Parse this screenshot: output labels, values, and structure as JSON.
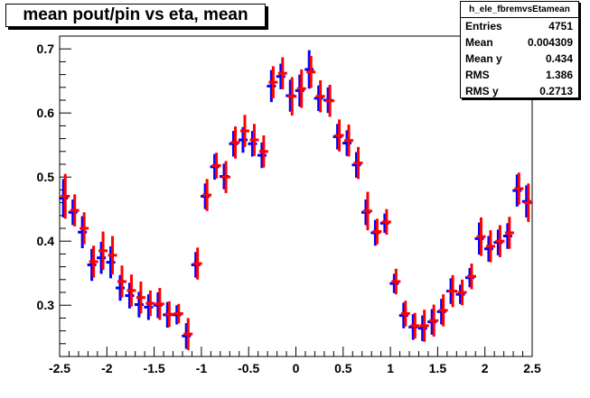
{
  "stats": {
    "name": "h_ele_fbremvsEtamean",
    "rows": [
      {
        "label": "Entries",
        "value": "4751"
      },
      {
        "label": "Mean",
        "value": "0.004309"
      },
      {
        "label": "Mean y",
        "value": "0.434"
      },
      {
        "label": "RMS",
        "value": "1.386"
      },
      {
        "label": "RMS y",
        "value": "0.2713"
      }
    ]
  },
  "chart_data": {
    "type": "scatter",
    "title": "mean pout/pin vs eta, mean",
    "xlabel": "",
    "ylabel": "",
    "xlim": [
      -2.5,
      2.5
    ],
    "ylim": [
      0.22,
      0.72
    ],
    "xticks": [
      "-2.5",
      "-2",
      "-1.5",
      "-1",
      "-0.5",
      "0",
      "0.5",
      "1",
      "1.5",
      "2",
      "2.5"
    ],
    "yticks": [
      "0.3",
      "0.4",
      "0.5",
      "0.6",
      "0.7"
    ],
    "grid": false,
    "colors": {
      "series_a": "#0000ff",
      "series_b": "#ff0000"
    },
    "series": [
      {
        "x": [
          -2.45,
          -2.35,
          -2.25,
          -2.15,
          -2.05,
          -1.95,
          -1.85,
          -1.75,
          -1.65,
          -1.55,
          -1.45,
          -1.35,
          -1.25,
          -1.15,
          -1.05,
          -0.95,
          -0.85,
          -0.75,
          -0.65,
          -0.55,
          -0.45,
          -0.35,
          -0.25,
          -0.15,
          -0.05,
          0.05,
          0.15,
          0.25,
          0.35,
          0.45,
          0.55,
          0.65,
          0.75,
          0.85,
          0.95,
          1.05,
          1.15,
          1.25,
          1.35,
          1.45,
          1.55,
          1.65,
          1.75,
          1.85,
          1.95,
          2.05,
          2.15,
          2.25,
          2.35,
          2.45
        ],
        "y": [
          0.467,
          0.445,
          0.414,
          0.363,
          0.374,
          0.367,
          0.327,
          0.315,
          0.301,
          0.297,
          0.3,
          0.285,
          0.285,
          0.252,
          0.363,
          0.47,
          0.516,
          0.501,
          0.552,
          0.558,
          0.552,
          0.534,
          0.642,
          0.657,
          0.627,
          0.635,
          0.668,
          0.623,
          0.62,
          0.563,
          0.553,
          0.519,
          0.445,
          0.413,
          0.428,
          0.334,
          0.284,
          0.266,
          0.264,
          0.274,
          0.29,
          0.322,
          0.317,
          0.343,
          0.404,
          0.388,
          0.398,
          0.408,
          0.479,
          0.462
        ],
        "err": [
          0.03,
          0.02,
          0.025,
          0.025,
          0.025,
          0.025,
          0.02,
          0.02,
          0.02,
          0.02,
          0.02,
          0.02,
          0.015,
          0.02,
          0.02,
          0.02,
          0.02,
          0.02,
          0.02,
          0.02,
          0.02,
          0.02,
          0.025,
          0.02,
          0.025,
          0.025,
          0.03,
          0.02,
          0.02,
          0.02,
          0.02,
          0.02,
          0.02,
          0.02,
          0.015,
          0.015,
          0.02,
          0.02,
          0.02,
          0.02,
          0.02,
          0.02,
          0.015,
          0.015,
          0.025,
          0.02,
          0.02,
          0.02,
          0.025,
          0.025
        ]
      },
      {
        "x": [
          -2.45,
          -2.35,
          -2.25,
          -2.15,
          -2.05,
          -1.95,
          -1.85,
          -1.75,
          -1.65,
          -1.55,
          -1.45,
          -1.35,
          -1.25,
          -1.15,
          -1.05,
          -0.95,
          -0.85,
          -0.75,
          -0.65,
          -0.55,
          -0.45,
          -0.35,
          -0.25,
          -0.15,
          -0.05,
          0.05,
          0.15,
          0.25,
          0.35,
          0.45,
          0.55,
          0.65,
          0.75,
          0.85,
          0.95,
          1.05,
          1.15,
          1.25,
          1.35,
          1.45,
          1.55,
          1.65,
          1.75,
          1.85,
          1.95,
          2.05,
          2.15,
          2.25,
          2.35,
          2.45
        ],
        "y": [
          0.47,
          0.448,
          0.42,
          0.368,
          0.385,
          0.378,
          0.337,
          0.323,
          0.312,
          0.303,
          0.302,
          0.286,
          0.287,
          0.255,
          0.365,
          0.472,
          0.518,
          0.5,
          0.554,
          0.572,
          0.558,
          0.54,
          0.648,
          0.662,
          0.626,
          0.638,
          0.664,
          0.626,
          0.619,
          0.565,
          0.557,
          0.522,
          0.447,
          0.415,
          0.43,
          0.337,
          0.287,
          0.268,
          0.268,
          0.276,
          0.292,
          0.322,
          0.32,
          0.345,
          0.407,
          0.392,
          0.4,
          0.413,
          0.482,
          0.46
        ],
        "err": [
          0.035,
          0.025,
          0.025,
          0.025,
          0.03,
          0.03,
          0.025,
          0.025,
          0.025,
          0.02,
          0.025,
          0.02,
          0.015,
          0.025,
          0.025,
          0.025,
          0.02,
          0.025,
          0.025,
          0.025,
          0.025,
          0.025,
          0.025,
          0.025,
          0.03,
          0.03,
          0.025,
          0.025,
          0.025,
          0.025,
          0.025,
          0.025,
          0.03,
          0.02,
          0.02,
          0.02,
          0.02,
          0.02,
          0.025,
          0.025,
          0.025,
          0.025,
          0.02,
          0.02,
          0.03,
          0.025,
          0.025,
          0.025,
          0.025,
          0.03
        ]
      }
    ]
  }
}
